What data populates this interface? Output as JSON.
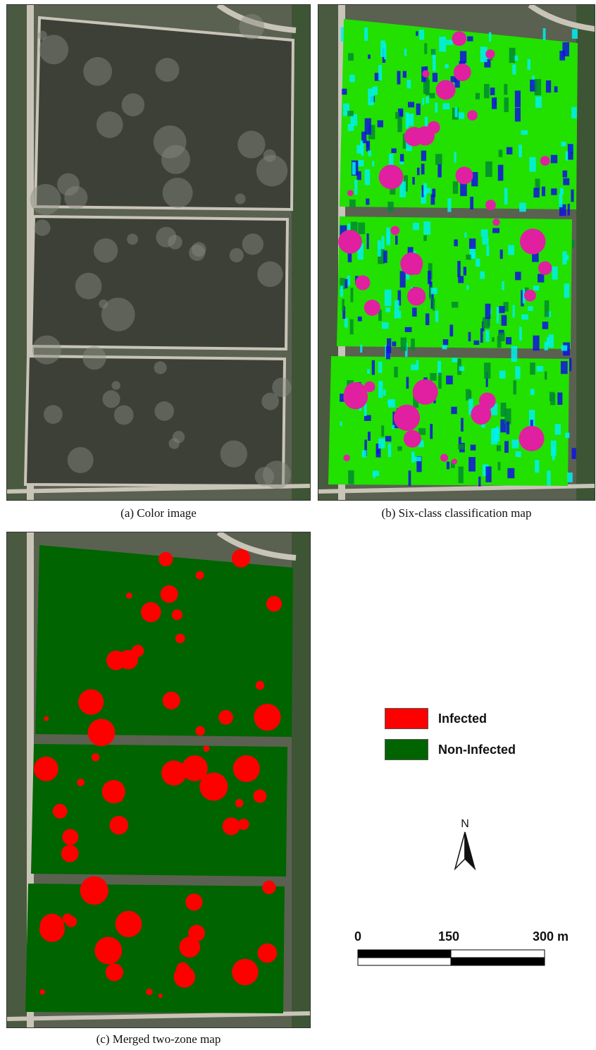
{
  "panels": [
    {
      "id": "a",
      "caption": "(a) Color image"
    },
    {
      "id": "b",
      "caption": "(b) Six-class classification map"
    },
    {
      "id": "c",
      "caption": "(c) Merged two-zone map"
    }
  ],
  "legend": [
    {
      "label": "Infected",
      "color": "#ff0000"
    },
    {
      "label": "Non-Infected",
      "color": "#006400"
    }
  ],
  "north_arrow": {
    "letter": "N"
  },
  "scale_bar": {
    "labels": [
      "0",
      "150",
      "300 m"
    ]
  },
  "colors": {
    "field_gray": "#3d4037",
    "soil": "#c9c4b8",
    "six_class_green": "#22e000",
    "six_class_cyan": "#00f0f0",
    "six_class_blue": "#1010e0",
    "six_class_magenta": "#e020a0",
    "dark_green": "#006400",
    "red": "#ff0000"
  }
}
